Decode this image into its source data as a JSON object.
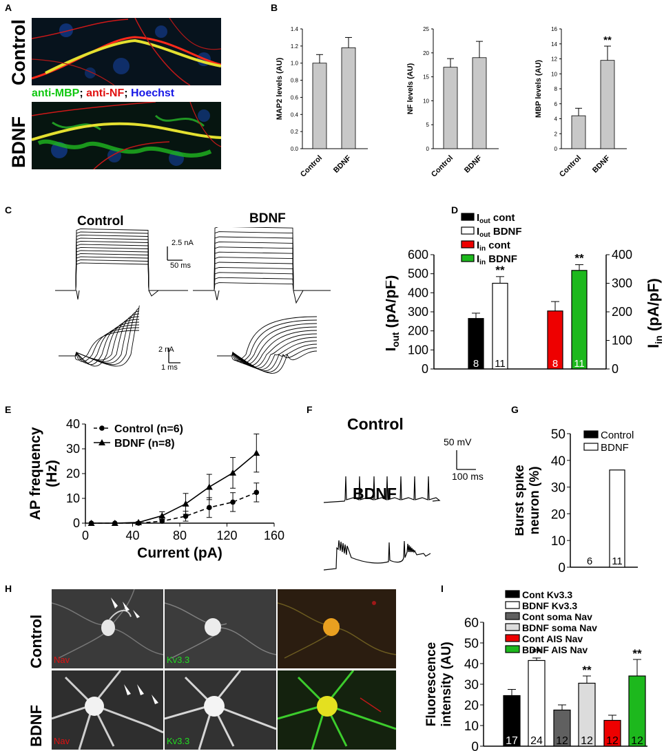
{
  "panels": {
    "A": "A",
    "B": "B",
    "C": "C",
    "D": "D",
    "E": "E",
    "F": "F",
    "G": "G",
    "H": "H",
    "I": "I"
  },
  "panelA": {
    "row1": "Control",
    "row2": "BDNF",
    "stain_mbp": "anti-MBP",
    "stain_nf": "anti-NF",
    "stain_hoechst": "Hoechst",
    "sep": ";",
    "colors": {
      "mbp": "#11c711",
      "nf": "#e01010",
      "hoechst": "#1818e6"
    }
  },
  "panelC": {
    "control": "Control",
    "bdnf": "BDNF",
    "scale_top_y": "2.5 nA",
    "scale_top_x": "50 ms",
    "scale_bot_y": "2 nA",
    "scale_bot_x": "1 ms"
  },
  "panelF": {
    "control": "Control",
    "bdnf": "BDNF",
    "scale_y": "50 mV",
    "scale_x": "100 ms"
  },
  "panelH": {
    "row1": "Control",
    "row2": "BDNF",
    "nav": "Nav",
    "kv": "Kv3.3",
    "colors": {
      "nav": "#e01010",
      "kv": "#22dd22"
    }
  },
  "chart_data": [
    {
      "id": "B1",
      "type": "bar",
      "categories": [
        "Control",
        "BDNF"
      ],
      "values": [
        1.0,
        1.18
      ],
      "errors": [
        0.1,
        0.12
      ],
      "ylabel": "MAP2 levels (AU)",
      "ylim": [
        0,
        1.4
      ],
      "yticks": [
        "0.0",
        "0.2",
        "0.4",
        "0.6",
        "0.8",
        "1.0",
        "1.2",
        "1.4"
      ],
      "color": "#c8c8c8",
      "sig": [
        "",
        ""
      ]
    },
    {
      "id": "B2",
      "type": "bar",
      "categories": [
        "Control",
        "BDNF"
      ],
      "values": [
        17,
        19
      ],
      "errors": [
        1.8,
        3.4
      ],
      "ylabel": "NF levels (AU)",
      "ylim": [
        0,
        25
      ],
      "yticks": [
        "0",
        "5",
        "10",
        "15",
        "20",
        "25"
      ],
      "color": "#c8c8c8",
      "sig": [
        "",
        ""
      ]
    },
    {
      "id": "B3",
      "type": "bar",
      "categories": [
        "Control",
        "BDNF"
      ],
      "values": [
        4.4,
        11.8
      ],
      "errors": [
        1.0,
        1.9
      ],
      "ylabel": "MBP levels (AU)",
      "ylim": [
        0,
        16
      ],
      "yticks": [
        "0",
        "2",
        "4",
        "6",
        "8",
        "10",
        "12",
        "14",
        "16"
      ],
      "color": "#c8c8c8",
      "sig": [
        "",
        "**"
      ]
    },
    {
      "id": "D",
      "type": "bar",
      "legend": [
        {
          "main": "I",
          "sub": "out",
          "rest": " cont",
          "color": "#000000"
        },
        {
          "main": "I",
          "sub": "out",
          "rest": " BDNF",
          "color": "#ffffff"
        },
        {
          "main": "I",
          "sub": "in",
          "rest": " cont",
          "color": "#ee0000"
        },
        {
          "main": "I",
          "sub": "in",
          "rest": " BDNF",
          "color": "#1db81d"
        }
      ],
      "left_axis": {
        "label_main": "I",
        "label_sub": "out",
        "label_rest": " (pA/pF)",
        "ylim": [
          0,
          600
        ],
        "yticks": [
          "0",
          "100",
          "200",
          "300",
          "400",
          "500",
          "600"
        ]
      },
      "right_axis": {
        "label_main": "I",
        "label_sub": "in",
        "label_rest": " (pA/pF)",
        "ylim": [
          0,
          400
        ],
        "yticks": [
          "0",
          "100",
          "200",
          "300",
          "400"
        ]
      },
      "bars": [
        {
          "value": 265,
          "error": 28,
          "axis": "left",
          "color": "#000000",
          "n": "8",
          "sig": ""
        },
        {
          "value": 450,
          "error": 35,
          "axis": "left",
          "color": "#ffffff",
          "n": "11",
          "sig": "**"
        },
        {
          "value": 203,
          "error": 33,
          "axis": "right",
          "color": "#ee0000",
          "n": "8",
          "sig": ""
        },
        {
          "value": 345,
          "error": 20,
          "axis": "right",
          "color": "#1db81d",
          "n": "11",
          "sig": "**"
        }
      ]
    },
    {
      "id": "E",
      "type": "line",
      "xlabel": "Current (pA)",
      "ylabel_line1": "AP frequency",
      "ylabel_line2": "(Hz)",
      "xlim": [
        0,
        160
      ],
      "ylim": [
        0,
        40
      ],
      "xticks": [
        "0",
        "40",
        "80",
        "120",
        "160"
      ],
      "yticks": [
        "0",
        "10",
        "20",
        "30",
        "40"
      ],
      "x": [
        5,
        25,
        45,
        65,
        85,
        105,
        125,
        145
      ],
      "series": [
        {
          "name": "Control (n=6)",
          "marker": "circle",
          "dash": true,
          "values": [
            0,
            0,
            0,
            0.8,
            2.8,
            6.3,
            8.5,
            12.4
          ],
          "errors": [
            0,
            0,
            0.3,
            0.8,
            2,
            4,
            3.8,
            3.8
          ]
        },
        {
          "name": "BDNF (n=8)",
          "marker": "triangle",
          "dash": false,
          "values": [
            0,
            0,
            0.3,
            3,
            7.8,
            14.6,
            20.3,
            28.3
          ],
          "errors": [
            0,
            0,
            0.3,
            1.6,
            4.2,
            5.1,
            6.2,
            7.7
          ]
        }
      ]
    },
    {
      "id": "G",
      "type": "bar",
      "ylabel_line1": "Burst spike",
      "ylabel_line2": "neuron (%)",
      "ylim": [
        0,
        50
      ],
      "yticks": [
        "0",
        "10",
        "20",
        "30",
        "40",
        "50"
      ],
      "legend": [
        {
          "name": "Control",
          "color": "#000000"
        },
        {
          "name": "BDNF",
          "color": "#ffffff"
        }
      ],
      "bars": [
        {
          "value": 0,
          "n": "6",
          "color": "#000000"
        },
        {
          "value": 36.4,
          "n": "11",
          "color": "#ffffff"
        }
      ]
    },
    {
      "id": "I",
      "type": "bar",
      "ylabel_line1": "Fluorescence",
      "ylabel_line2": "intensity (AU)",
      "ylim": [
        0,
        60
      ],
      "yticks": [
        "0",
        "10",
        "20",
        "30",
        "40",
        "50",
        "60"
      ],
      "legend": [
        {
          "name": "Cont Kv3.3",
          "color": "#000000"
        },
        {
          "name": "BDNF Kv3.3",
          "color": "#ffffff"
        },
        {
          "name": "Cont soma Nav",
          "color": "#606060"
        },
        {
          "name": "BDNF soma Nav",
          "color": "#dcdcdc"
        },
        {
          "name": "Cont AIS Nav",
          "color": "#ee0000"
        },
        {
          "name": "BDNF AIS Nav",
          "color": "#1db81d"
        }
      ],
      "bars": [
        {
          "value": 24.5,
          "error": 3,
          "color": "#000000",
          "n": "17",
          "sig": "",
          "ncolor": "#fff"
        },
        {
          "value": 41.5,
          "error": 1.2,
          "color": "#ffffff",
          "n": "24",
          "sig": "**",
          "ncolor": "#000"
        },
        {
          "value": 17.5,
          "error": 2.5,
          "color": "#606060",
          "n": "12",
          "sig": "",
          "ncolor": "#000"
        },
        {
          "value": 30.5,
          "error": 3.5,
          "color": "#dcdcdc",
          "n": "12",
          "sig": "**",
          "ncolor": "#000"
        },
        {
          "value": 12.5,
          "error": 2.5,
          "color": "#ee0000",
          "n": "12",
          "sig": "",
          "ncolor": "#000"
        },
        {
          "value": 34,
          "error": 8,
          "color": "#1db81d",
          "n": "12",
          "sig": "**",
          "ncolor": "#000"
        }
      ]
    }
  ]
}
